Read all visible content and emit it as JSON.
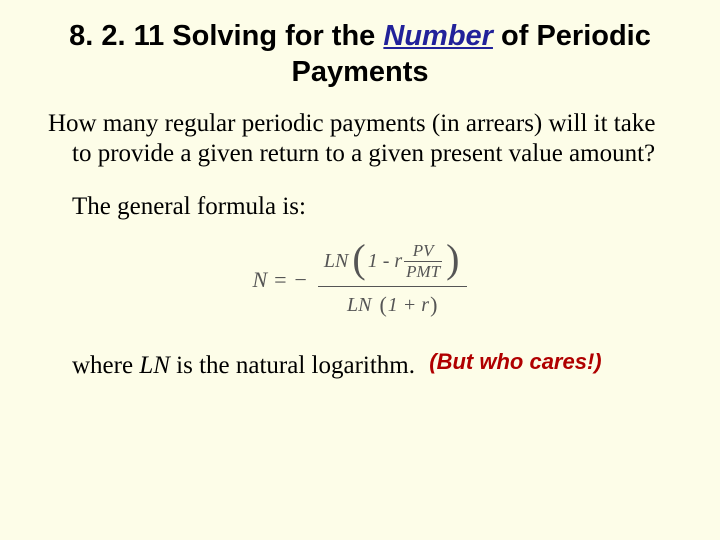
{
  "title": {
    "prefix": "8. 2. 11 Solving for the ",
    "emph": "Number",
    "suffix": " of Periodic Payments"
  },
  "body": {
    "para1": "How many regular periodic payments (in arrears) will it take to provide a given return to a given present value amount?",
    "para2": "The general formula is:"
  },
  "formula": {
    "lhs": "N",
    "equals": "  =  ",
    "neg": "−  ",
    "ln": "LN",
    "one_minus_r": "1 - r",
    "pv": "PV",
    "pmt": "PMT",
    "one_plus_r": "1 + r",
    "text_color": "#555555"
  },
  "footer": {
    "text_pre": "where ",
    "ln": "LN",
    "text_post": " is the natural logarithm.",
    "aside": "(But who cares!)",
    "aside_color": "#b00000"
  },
  "colors": {
    "background": "#fdfde8",
    "title_emph": "#22229a"
  },
  "fonts": {
    "title_family": "Arial",
    "title_size_pt": 22,
    "body_family": "Times New Roman",
    "body_size_pt": 19,
    "formula_size_pt": 16
  }
}
